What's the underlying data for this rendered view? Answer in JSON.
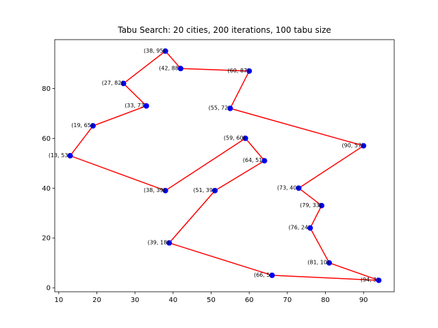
{
  "chart_data": {
    "type": "scatter",
    "title": "Tabu Search: 20 cities, 200 iterations, 100 tabu size",
    "xlabel": "",
    "ylabel": "",
    "xlim": [
      8.95,
      98.05
    ],
    "ylim": [
      -1.6,
      99.6
    ],
    "xticks": [
      10,
      20,
      30,
      40,
      50,
      60,
      70,
      80,
      90
    ],
    "yticks": [
      0,
      20,
      40,
      60,
      80
    ],
    "grid": false,
    "colors": {
      "points": "#0000ff",
      "route": "#ff0000"
    },
    "points": [
      {
        "x": 38,
        "y": 95,
        "label": "(38, 95)"
      },
      {
        "x": 42,
        "y": 88,
        "label": "(42, 88)"
      },
      {
        "x": 60,
        "y": 87,
        "label": "(60, 87)"
      },
      {
        "x": 27,
        "y": 82,
        "label": "(27, 82)"
      },
      {
        "x": 33,
        "y": 73,
        "label": "(33, 73)"
      },
      {
        "x": 55,
        "y": 72,
        "label": "(55, 72)"
      },
      {
        "x": 19,
        "y": 65,
        "label": "(19, 65)"
      },
      {
        "x": 59,
        "y": 60,
        "label": "(59, 60)"
      },
      {
        "x": 90,
        "y": 57,
        "label": "(90, 57)"
      },
      {
        "x": 13,
        "y": 53,
        "label": "(13, 53)"
      },
      {
        "x": 64,
        "y": 51,
        "label": "(64, 51)"
      },
      {
        "x": 73,
        "y": 40,
        "label": "(73, 40)"
      },
      {
        "x": 38,
        "y": 39,
        "label": "(38, 39)"
      },
      {
        "x": 51,
        "y": 39,
        "label": "(51, 39)"
      },
      {
        "x": 79,
        "y": 33,
        "label": "(79, 33)"
      },
      {
        "x": 76,
        "y": 24,
        "label": "(76, 24)"
      },
      {
        "x": 39,
        "y": 18,
        "label": "(39, 18)"
      },
      {
        "x": 81,
        "y": 10,
        "label": "(81, 10)"
      },
      {
        "x": 66,
        "y": 5,
        "label": "(66, 5)"
      },
      {
        "x": 94,
        "y": 3,
        "label": "(94, 3)"
      }
    ],
    "route": [
      [
        38,
        95
      ],
      [
        42,
        88
      ],
      [
        60,
        87
      ],
      [
        55,
        72
      ],
      [
        90,
        57
      ],
      [
        73,
        40
      ],
      [
        79,
        33
      ],
      [
        76,
        24
      ],
      [
        81,
        10
      ],
      [
        94,
        3
      ],
      [
        66,
        5
      ],
      [
        39,
        18
      ],
      [
        51,
        39
      ],
      [
        64,
        51
      ],
      [
        59,
        60
      ],
      [
        38,
        39
      ],
      [
        13,
        53
      ],
      [
        19,
        65
      ],
      [
        33,
        73
      ],
      [
        27,
        82
      ],
      [
        38,
        95
      ]
    ]
  }
}
